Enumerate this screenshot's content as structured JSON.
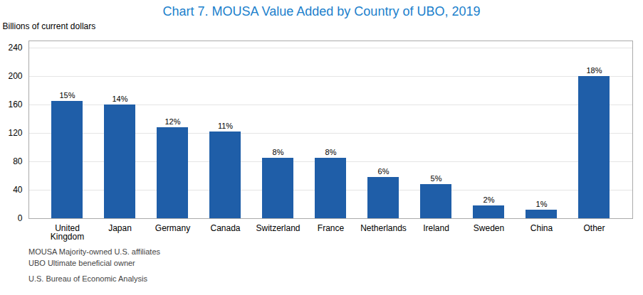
{
  "chart_data": {
    "type": "bar",
    "title": "Chart 7. MOUSA Value Added by Country of UBO, 2019",
    "y_label": "Billions of current dollars",
    "categories": [
      "United\nKingdom",
      "Japan",
      "Germany",
      "Canada",
      "Switzerland",
      "France",
      "Netherlands",
      "Ireland",
      "Sweden",
      "China",
      "Other"
    ],
    "values": [
      165,
      160,
      128,
      122,
      85,
      85,
      58,
      48,
      18,
      12,
      200
    ],
    "percentages": [
      {
        "value": 15,
        "label": "15%"
      },
      {
        "value": 14,
        "label": "14%"
      },
      {
        "value": 12,
        "label": "12%"
      },
      {
        "value": 11,
        "label": "11%"
      },
      {
        "value": 8,
        "label": "8%"
      },
      {
        "value": 8,
        "label": "8%"
      },
      {
        "value": 6,
        "label": "6%"
      },
      {
        "value": 5,
        "label": "5%"
      },
      {
        "value": 2,
        "label": "2%"
      },
      {
        "value": 1,
        "label": "1%"
      },
      {
        "value": 18,
        "label": "18%"
      }
    ],
    "color": "#1F5EA8",
    "ylim": [
      0,
      250
    ],
    "yticks": [
      0,
      40,
      80,
      120,
      160,
      200,
      240
    ],
    "grid": true,
    "footnotes": [
      "MOUSA  Majority-owned U.S. affiliates",
      "UBO  Ultimate beneficial owner",
      "U.S. Bureau of Economic Analysis"
    ]
  }
}
